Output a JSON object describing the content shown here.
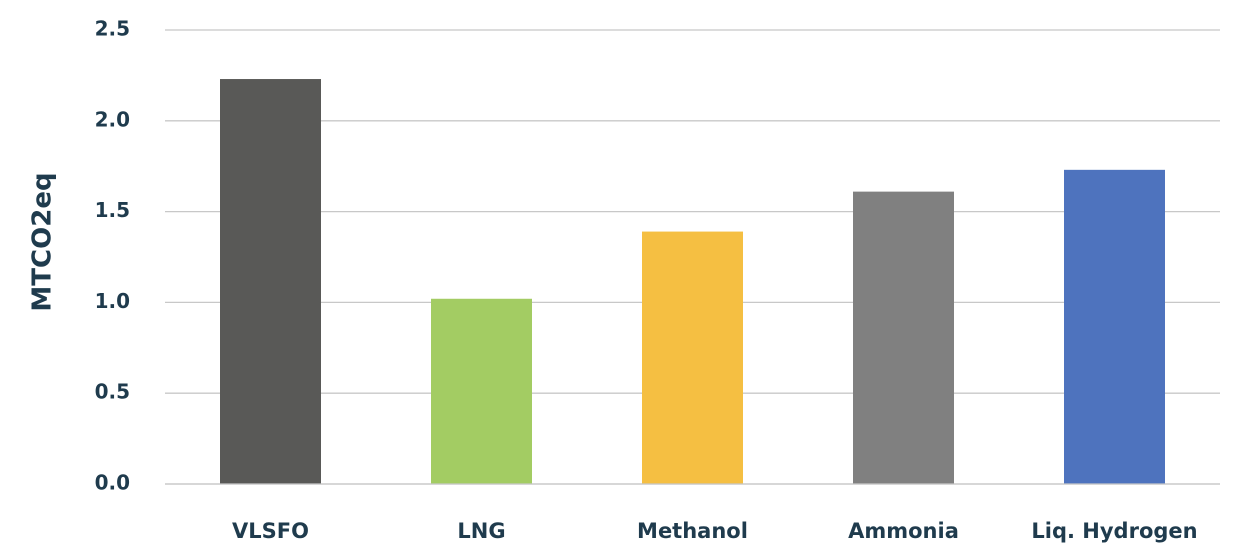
{
  "chart_data": {
    "type": "bar",
    "title": "",
    "xlabel": "",
    "ylabel": "MTCO2eq",
    "ylim": [
      0,
      2.5
    ],
    "yticks": [
      "0.0",
      "0.5",
      "1.0",
      "1.5",
      "2.0",
      "2.5"
    ],
    "grid": true,
    "legend": "none",
    "categories": [
      "VLSFO",
      "LNG",
      "Methanol",
      "Ammonia",
      "Liq. Hydrogen"
    ],
    "values": [
      2.23,
      1.02,
      1.39,
      1.61,
      1.73
    ],
    "colors": [
      "#595957",
      "#a3cc63",
      "#f5bf42",
      "#808080",
      "#4e73be"
    ],
    "grid_color": "#c8c8c8"
  }
}
